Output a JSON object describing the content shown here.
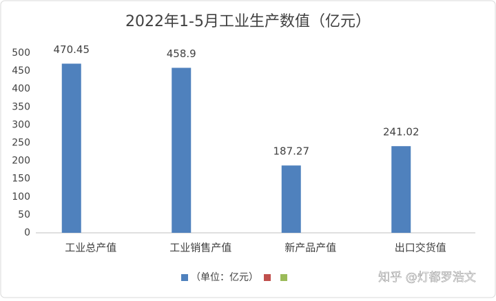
{
  "chart_data": {
    "type": "bar",
    "title": "2022年1-5月工业生产数值（亿元）",
    "categories": [
      "工业总产值",
      "工业销售产值",
      "新产品产值",
      "出口交货值"
    ],
    "series": [
      {
        "name": "（单位：亿元）",
        "color": "#4f81bd",
        "values": [
          470.45,
          458.9,
          187.27,
          241.02
        ]
      },
      {
        "color": "#c0504d",
        "values": [
          null,
          null,
          null,
          null
        ]
      },
      {
        "color": "#9bbb59",
        "values": [
          null,
          null,
          null,
          null
        ]
      }
    ],
    "ylim": [
      0,
      500
    ],
    "yticks": [
      0,
      50,
      100,
      150,
      200,
      250,
      300,
      350,
      400,
      450,
      500
    ],
    "grid": false,
    "legend": "bottom",
    "show_value_labels": true,
    "watermark": "知乎 @灯都罗浩文"
  }
}
